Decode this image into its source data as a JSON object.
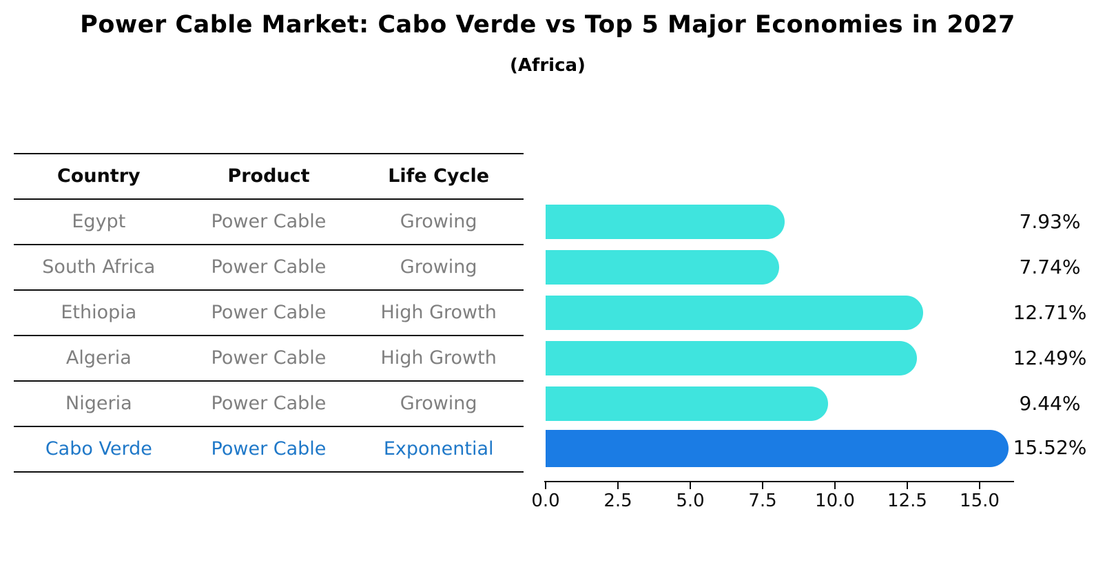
{
  "title": "Power Cable Market: Cabo Verde vs Top 5 Major Economies in 2027",
  "subtitle": "(Africa)",
  "table": {
    "headers": {
      "country": "Country",
      "product": "Product",
      "life_cycle": "Life Cycle"
    },
    "rows": [
      {
        "country": "Egypt",
        "product": "Power Cable",
        "life_cycle": "Growing",
        "highlight": false
      },
      {
        "country": "South Africa",
        "product": "Power Cable",
        "life_cycle": "Growing",
        "highlight": false
      },
      {
        "country": "Ethiopia",
        "product": "Power Cable",
        "life_cycle": "High Growth",
        "highlight": false
      },
      {
        "country": "Algeria",
        "product": "Power Cable",
        "life_cycle": "High Growth",
        "highlight": false
      },
      {
        "country": "Nigeria",
        "product": "Power Cable",
        "life_cycle": "Growing",
        "highlight": false
      },
      {
        "country": "Cabo Verde",
        "product": "Power Cable",
        "life_cycle": "Exponential",
        "highlight": true
      }
    ]
  },
  "chart_data": {
    "type": "bar",
    "orientation": "horizontal",
    "title": "Power Cable Market: Cabo Verde vs Top 5 Major Economies in 2027",
    "subtitle": "(Africa)",
    "categories": [
      "Egypt",
      "South Africa",
      "Ethiopia",
      "Algeria",
      "Nigeria",
      "Cabo Verde"
    ],
    "values": [
      7.93,
      7.74,
      12.71,
      12.49,
      9.44,
      15.52
    ],
    "value_labels": [
      "7.93%",
      "7.74%",
      "12.71%",
      "12.49%",
      "9.44%",
      "15.52%"
    ],
    "x_tick_labels": [
      "0.0",
      "2.5",
      "5.0",
      "7.5",
      "10.0",
      "12.5",
      "15.0"
    ],
    "x_tick_values": [
      0,
      2.5,
      5,
      7.5,
      10,
      12.5,
      15
    ],
    "xlim": [
      0,
      16.2
    ],
    "grid": false,
    "legend": "none",
    "bar_color": "#3fe4de",
    "highlight_bar_color": "#1b7ce4",
    "highlight_category": "Cabo Verde"
  },
  "colors": {
    "background": "#ffffff",
    "title_text": "#000000",
    "table_row_text": "#7f7f7f",
    "table_header_text": "#0a0a0a",
    "highlight_text": "#1f78c8",
    "axis": "#0e0e0e"
  }
}
